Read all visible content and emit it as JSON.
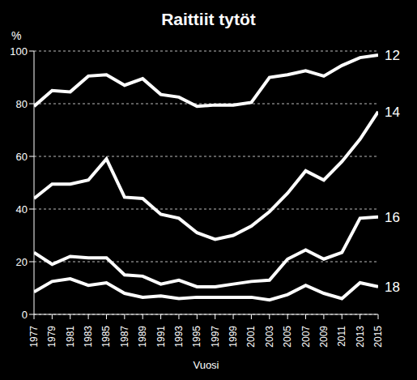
{
  "chart_data": {
    "type": "line",
    "title": "Raittiit tytöt",
    "x_label": "Vuosi",
    "y_label": "%",
    "x": [
      1977,
      1979,
      1981,
      1983,
      1985,
      1987,
      1989,
      1991,
      1993,
      1995,
      1997,
      1999,
      2001,
      2003,
      2005,
      2007,
      2009,
      2011,
      2013,
      2015
    ],
    "series": [
      {
        "name": "12",
        "color": "#ffffff",
        "values": [
          79,
          85,
          84.5,
          90.5,
          91,
          87,
          89.5,
          83.5,
          82.5,
          79,
          79.5,
          79.5,
          80.5,
          90,
          91,
          92.5,
          90.5,
          94.5,
          97.5,
          98.5
        ]
      },
      {
        "name": "14",
        "color": "#ffffff",
        "values": [
          44,
          49.5,
          49.5,
          51,
          59,
          44.5,
          44,
          38,
          36.5,
          31,
          28.5,
          30,
          33.5,
          39,
          46,
          54.5,
          51,
          58,
          66.5,
          77
        ]
      },
      {
        "name": "16",
        "color": "#ffffff",
        "values": [
          23.5,
          19,
          22,
          21.5,
          21.5,
          15,
          14.5,
          11.5,
          13,
          10.5,
          10.5,
          11.5,
          12.5,
          13,
          21,
          24.5,
          21,
          23.5,
          36.5,
          37
        ]
      },
      {
        "name": "18",
        "color": "#ffffff",
        "values": [
          8.5,
          12.5,
          13.5,
          11,
          12,
          8,
          6.5,
          7,
          6,
          6.5,
          6.5,
          6.5,
          6.5,
          5.5,
          7.5,
          11,
          8,
          6,
          12,
          10.5
        ]
      }
    ],
    "xlim": [
      1977,
      2015
    ],
    "xticks": [
      1977,
      1979,
      1981,
      1983,
      1985,
      1987,
      1989,
      1991,
      1993,
      1995,
      1997,
      1999,
      2001,
      2003,
      2005,
      2007,
      2009,
      2011,
      2013,
      2015
    ],
    "ylim": [
      0,
      100
    ],
    "yticks": [
      0,
      20,
      40,
      60,
      80,
      100
    ],
    "grid": true
  }
}
